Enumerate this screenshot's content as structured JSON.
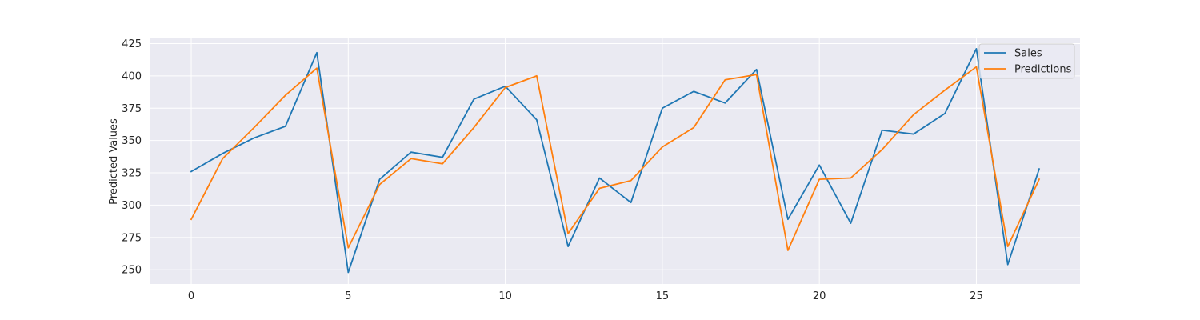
{
  "chart_data": {
    "type": "line",
    "title": "",
    "xlabel": "",
    "ylabel": "Predicted Values",
    "x": [
      0,
      1,
      2,
      3,
      4,
      5,
      6,
      7,
      8,
      9,
      10,
      11,
      12,
      13,
      14,
      15,
      16,
      17,
      18,
      19,
      20,
      21,
      22,
      23,
      24,
      25,
      26,
      27
    ],
    "xticks": [
      0,
      5,
      10,
      15,
      20,
      25
    ],
    "yticks": [
      250,
      275,
      300,
      325,
      350,
      375,
      400,
      425
    ],
    "xlim": [
      -1.3,
      28.3
    ],
    "ylim": [
      239,
      429
    ],
    "grid": true,
    "legend_position": "upper-right",
    "series": [
      {
        "name": "Sales",
        "color": "#1f77b4",
        "values": [
          326,
          340,
          352,
          361,
          418,
          248,
          320,
          341,
          337,
          382,
          392,
          366,
          268,
          321,
          302,
          375,
          388,
          379,
          405,
          289,
          331,
          286,
          358,
          355,
          371,
          421,
          254,
          328
        ]
      },
      {
        "name": "Predictions",
        "color": "#ff7f0e",
        "values": [
          289,
          336,
          360,
          385,
          406,
          267,
          316,
          336,
          332,
          360,
          391,
          400,
          278,
          313,
          319,
          345,
          360,
          397,
          401,
          265,
          320,
          321,
          343,
          370,
          389,
          407,
          268,
          320
        ]
      }
    ]
  }
}
